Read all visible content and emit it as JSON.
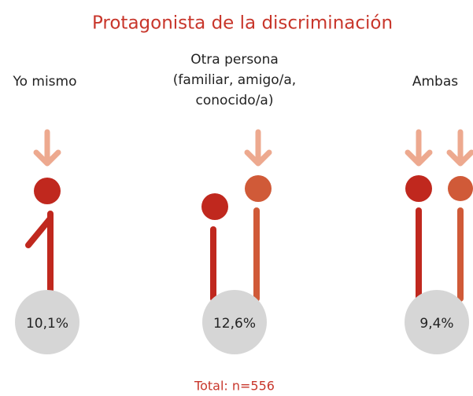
{
  "title": "Protagonista de la discriminación",
  "groups": [
    {
      "label": [
        "Yo mismo"
      ],
      "value": "10,1%"
    },
    {
      "label": [
        "Otra persona",
        "(familiar, amigo/a,",
        "conocido/a)"
      ],
      "value": "12,6%"
    },
    {
      "label": [
        "Ambas"
      ],
      "value": "9,4%"
    }
  ],
  "footer": "Total: n=556"
}
